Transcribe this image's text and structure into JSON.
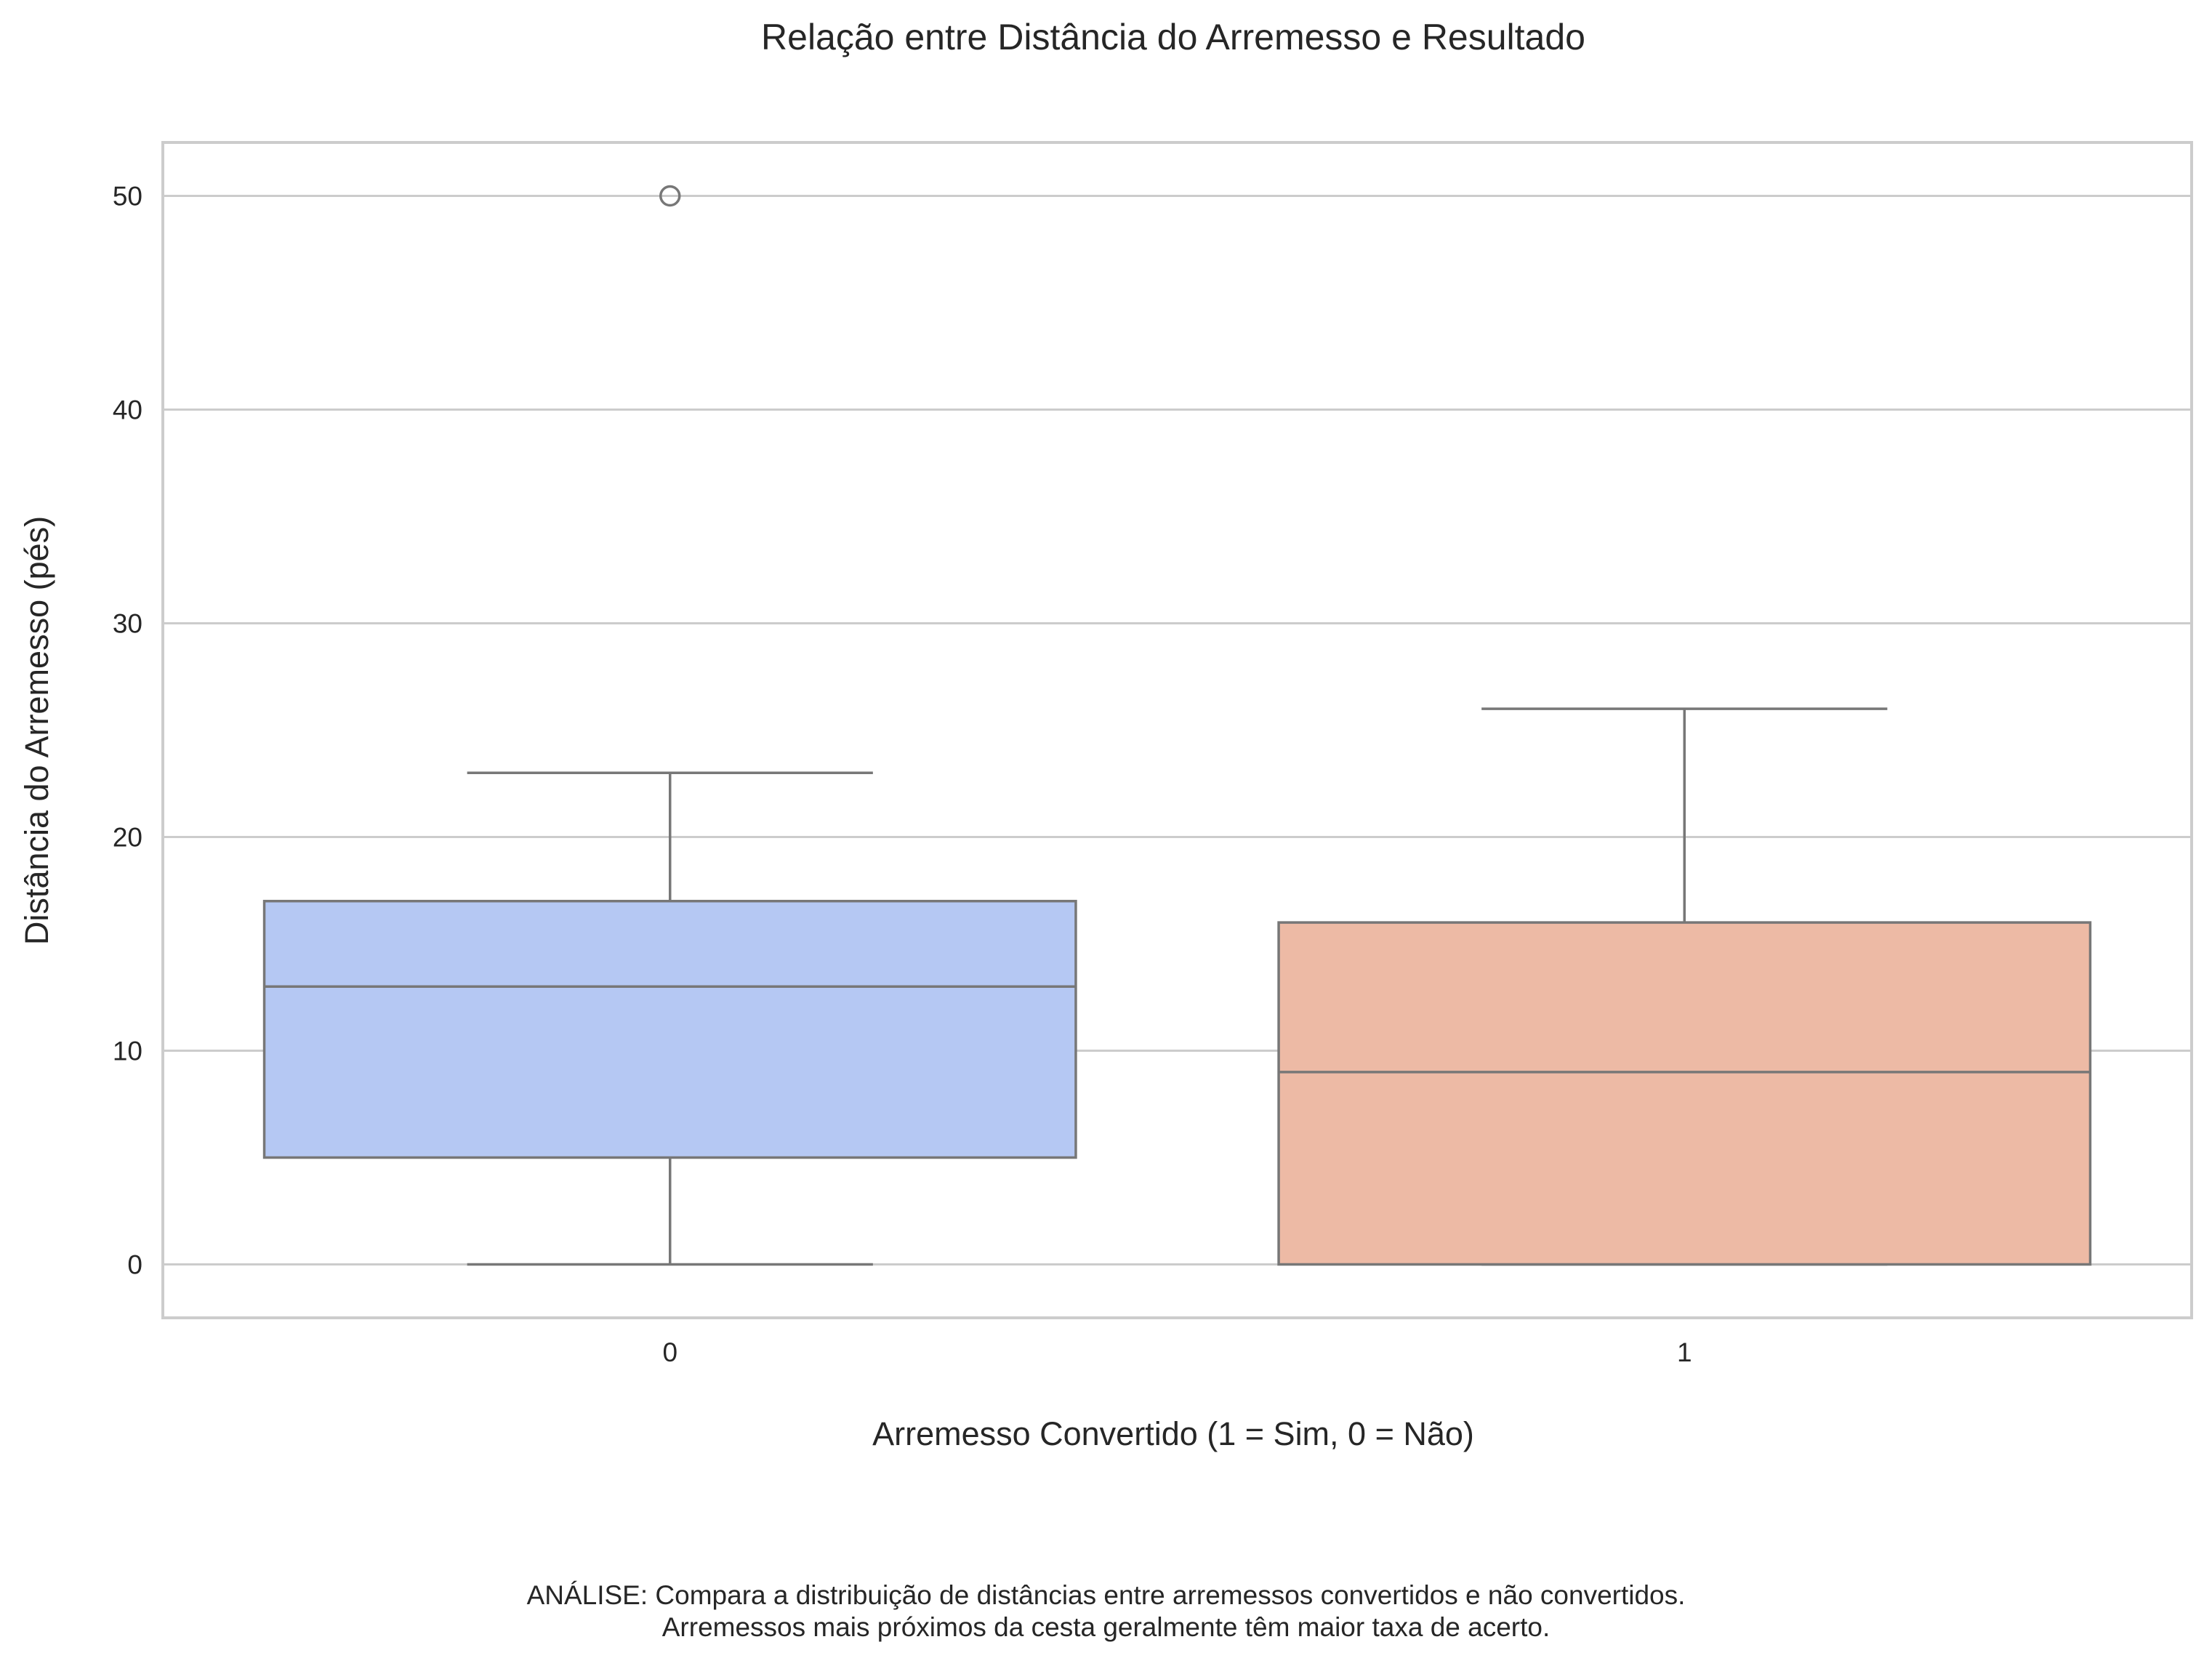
{
  "chart_data": {
    "type": "box",
    "title": "Relação entre Distância do Arremesso e Resultado",
    "xlabel": "Arremesso Convertido (1 = Sim, 0 = Não)",
    "ylabel": "Distância do Arremesso (pés)",
    "categories": [
      "0",
      "1"
    ],
    "ylim": [
      -2.5,
      52.5
    ],
    "yticks": [
      0,
      10,
      20,
      30,
      40,
      50
    ],
    "grid": "y",
    "boxes": [
      {
        "category": "0",
        "whisker_low": 0,
        "q1": 5,
        "median": 13,
        "q3": 17,
        "whisker_high": 23,
        "outliers": [
          50
        ],
        "color": "#b5c8f3"
      },
      {
        "category": "1",
        "whisker_low": 0,
        "q1": 0,
        "median": 9,
        "q3": 16,
        "whisker_high": 26,
        "outliers": [],
        "color": "#edbaa5"
      }
    ]
  },
  "annotation": {
    "line1": "ANÁLISE: Compara a distribuição de distâncias entre arremessos convertidos e não convertidos.",
    "line2": "Arremessos mais próximos da cesta geralmente têm maior taxa de acerto."
  },
  "colors": {
    "grid": "#cccccc",
    "frame": "#cccccc",
    "box_edge": "#777777"
  }
}
